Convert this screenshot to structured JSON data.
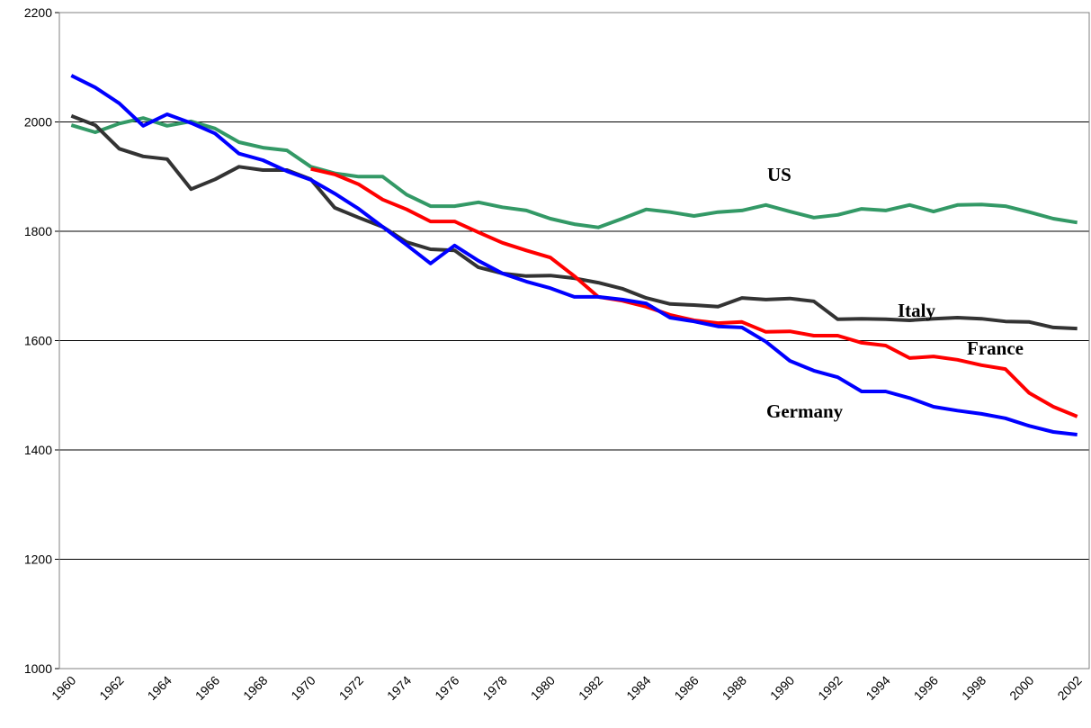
{
  "chart_data": {
    "type": "line",
    "categories": [
      "1960",
      null,
      "1962",
      null,
      "1964",
      null,
      "1966",
      null,
      "1968",
      null,
      "1970",
      null,
      "1972",
      null,
      "1974",
      null,
      "1976",
      null,
      "1978",
      null,
      "1980",
      null,
      "1982",
      null,
      "1984",
      null,
      "1986",
      null,
      "1988",
      null,
      "1990",
      null,
      "1992",
      null,
      "1994",
      null,
      "1996",
      null,
      "1998",
      null,
      "2000",
      null,
      "2002"
    ],
    "ylim": [
      1000,
      2200
    ],
    "yticks": [
      1000,
      1200,
      1400,
      1600,
      1800,
      2000,
      2200
    ],
    "grid": true,
    "series": [
      {
        "name": "US",
        "color": "#339966",
        "values": [
          1994,
          1981,
          1997,
          2007,
          1993,
          2001,
          1988,
          1963,
          1953,
          1948,
          1918,
          1906,
          1900,
          1900,
          1867,
          1846,
          1846,
          1853,
          1844,
          1838,
          1823,
          1813,
          1807,
          1823,
          1840,
          1835,
          1828,
          1835,
          1838,
          1848,
          1836,
          1825,
          1830,
          1841,
          1838,
          1848,
          1836,
          1848,
          1849,
          1846,
          1835,
          1823,
          1816
        ]
      },
      {
        "name": "Italy",
        "color": "#333333",
        "values": [
          2011,
          1994,
          1951,
          1937,
          1932,
          1877,
          1895,
          1918,
          1912,
          1912,
          1895,
          1843,
          1825,
          1808,
          1780,
          1767,
          1765,
          1734,
          1723,
          1718,
          1719,
          1714,
          1706,
          1695,
          1678,
          1667,
          1665,
          1662,
          1678,
          1675,
          1677,
          1672,
          1639,
          1640,
          1639,
          1637,
          1640,
          1642,
          1640,
          1635,
          1634,
          1624,
          1622
        ]
      },
      {
        "name": "France",
        "color": "#ff0000",
        "values": [
          null,
          null,
          null,
          null,
          null,
          null,
          null,
          null,
          null,
          null,
          1914,
          1904,
          1886,
          1858,
          1840,
          1818,
          1818,
          1798,
          1779,
          1765,
          1752,
          1718,
          1680,
          1673,
          1662,
          1647,
          1637,
          1632,
          1634,
          1616,
          1617,
          1609,
          1609,
          1596,
          1591,
          1568,
          1571,
          1565,
          1555,
          1548,
          1504,
          1479,
          1461
        ]
      },
      {
        "name": "Germany",
        "color": "#0000ff",
        "values": [
          2085,
          2063,
          2034,
          1993,
          2014,
          1998,
          1979,
          1942,
          1930,
          1910,
          1894,
          1869,
          1841,
          1808,
          1775,
          1741,
          1774,
          1746,
          1723,
          1708,
          1696,
          1680,
          1680,
          1675,
          1668,
          1642,
          1635,
          1626,
          1624,
          1598,
          1563,
          1545,
          1533,
          1507,
          1507,
          1495,
          1479,
          1472,
          1466,
          1458,
          1444,
          1433,
          1428
        ]
      }
    ]
  }
}
